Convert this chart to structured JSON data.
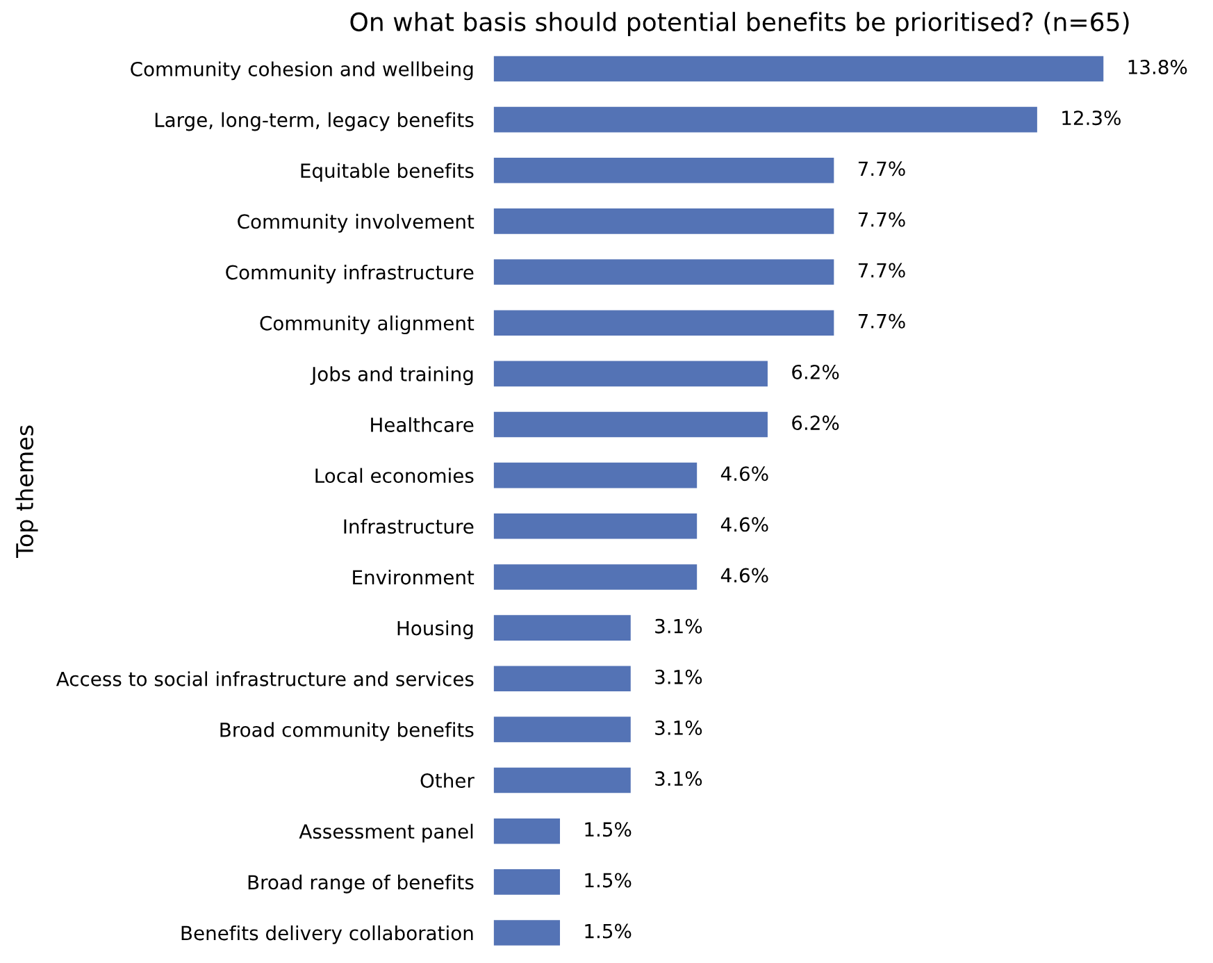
{
  "chart_data": {
    "type": "bar",
    "orientation": "horizontal",
    "title": "On what basis should potential benefits be prioritised? (n=65)",
    "ylabel": "Top themes",
    "categories": [
      "Community cohesion and wellbeing",
      "Large, long-term, legacy benefits",
      "Equitable benefits",
      "Community involvement",
      "Community infrastructure",
      "Community alignment",
      "Jobs and training",
      "Healthcare",
      "Local economies",
      "Infrastructure",
      "Environment",
      "Housing",
      "Access to social infrastructure and services",
      "Broad community benefits",
      "Other",
      "Assessment panel",
      "Broad range of benefits",
      "Benefits delivery collaboration"
    ],
    "values": [
      13.8,
      12.3,
      7.7,
      7.7,
      7.7,
      7.7,
      6.2,
      6.2,
      4.6,
      4.6,
      4.6,
      3.1,
      3.1,
      3.1,
      3.1,
      1.5,
      1.5,
      1.5
    ],
    "value_labels": [
      "13.8%",
      "12.3%",
      "7.7%",
      "7.7%",
      "7.7%",
      "7.7%",
      "6.2%",
      "6.2%",
      "4.6%",
      "4.6%",
      "4.6%",
      "3.1%",
      "3.1%",
      "3.1%",
      "3.1%",
      "1.5%",
      "1.5%",
      "1.5%"
    ],
    "color": "#5473b5",
    "tick_labels": "y"
  }
}
